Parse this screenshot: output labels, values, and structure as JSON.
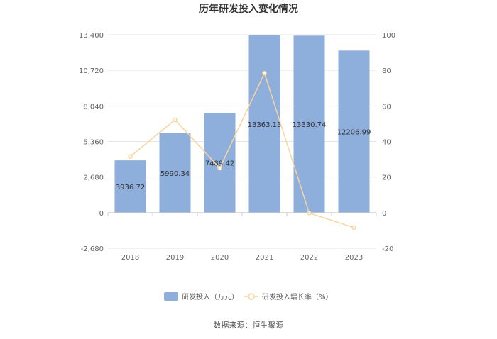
{
  "chart_data": {
    "type": "bar",
    "title": "历年研发投入变化情况",
    "categories": [
      "2018",
      "2019",
      "2020",
      "2021",
      "2022",
      "2023"
    ],
    "series": [
      {
        "name": "研发投入（万元）",
        "type": "bar",
        "axis": "left",
        "values": [
          3936.72,
          5990.34,
          7489.42,
          13363.13,
          13330.74,
          12206.99
        ],
        "labels": [
          "3936.72",
          "5990.34",
          "7489.42",
          "13363.13",
          "13330.74",
          "12206.99"
        ],
        "color": "#8eaedc"
      },
      {
        "name": "研发投入增长率（%）",
        "type": "line",
        "axis": "right",
        "values": [
          31.5,
          52.2,
          25.0,
          78.4,
          -0.2,
          -8.4
        ],
        "color": "#f7d59c"
      }
    ],
    "y_left": {
      "ylim": [
        -2680,
        13400
      ],
      "ticks": [
        -2680,
        0,
        2680,
        5360,
        8040,
        10720,
        13400
      ],
      "tick_labels": [
        "-2,680",
        "0",
        "2,680",
        "5,360",
        "8,040",
        "10,720",
        "13,400"
      ]
    },
    "y_right": {
      "ylim": [
        -20,
        100
      ],
      "ticks": [
        -20,
        0,
        20,
        40,
        60,
        80,
        100
      ],
      "tick_labels": [
        "-20",
        "0",
        "20",
        "40",
        "60",
        "80",
        "100"
      ]
    },
    "grid": true,
    "legend": "bottom",
    "source": "数据来源：恒生聚源"
  }
}
